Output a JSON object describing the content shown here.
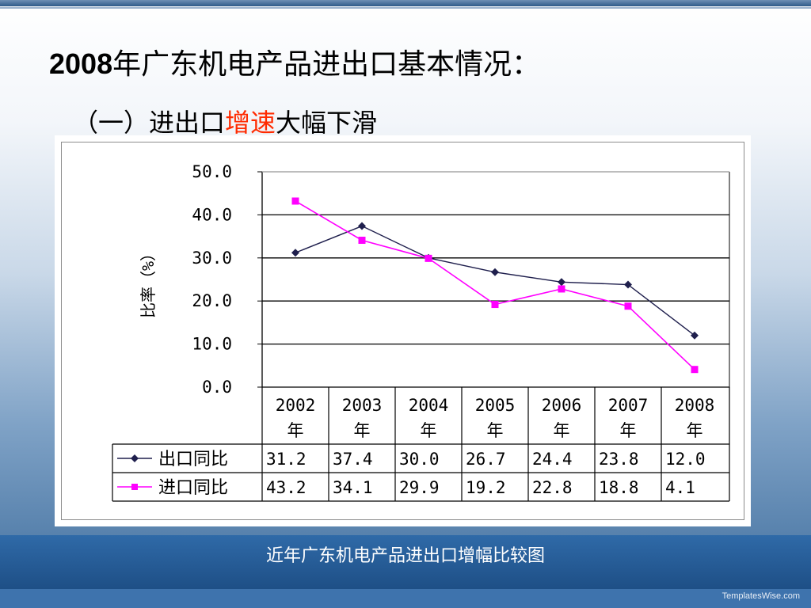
{
  "slide": {
    "title_num": "2008",
    "title_rest": "年广东机电产品进出口基本情况：",
    "subtitle_pre": "（一）进出口",
    "subtitle_highlight": "增速",
    "subtitle_post": "大幅下滑",
    "caption": "近年广东机电产品进出口增幅比较图",
    "brand": "TemplatesWise.com",
    "highlight_color": "#ff2a00"
  },
  "chart_data": {
    "type": "line",
    "title": "",
    "ylabel": "比率（%）",
    "xlabel": "",
    "ylim": [
      0,
      50
    ],
    "yticks": [
      "50.0",
      "40.0",
      "30.0",
      "20.0",
      "10.0",
      "0.0"
    ],
    "grid": true,
    "categories": [
      [
        "2002",
        "年"
      ],
      [
        "2003",
        "年"
      ],
      [
        "2004",
        "年"
      ],
      [
        "2005",
        "年"
      ],
      [
        "2006",
        "年"
      ],
      [
        "2007",
        "年"
      ],
      [
        "2008",
        "年"
      ]
    ],
    "series": [
      {
        "name": "出口同比",
        "color": "#1f1f4d",
        "marker": "diamond",
        "values": [
          31.2,
          37.4,
          30.0,
          26.7,
          24.4,
          23.8,
          12.0
        ],
        "labels": [
          "31.2",
          "37.4",
          "30.0",
          "26.7",
          "24.4",
          "23.8",
          "12.0"
        ]
      },
      {
        "name": "进口同比",
        "color": "#ff00ff",
        "marker": "square",
        "values": [
          43.2,
          34.1,
          29.9,
          19.2,
          22.8,
          18.8,
          4.1
        ],
        "labels": [
          "43.2",
          "34.1",
          "29.9",
          "19.2",
          "22.8",
          "18.8",
          "4.1"
        ]
      }
    ]
  }
}
